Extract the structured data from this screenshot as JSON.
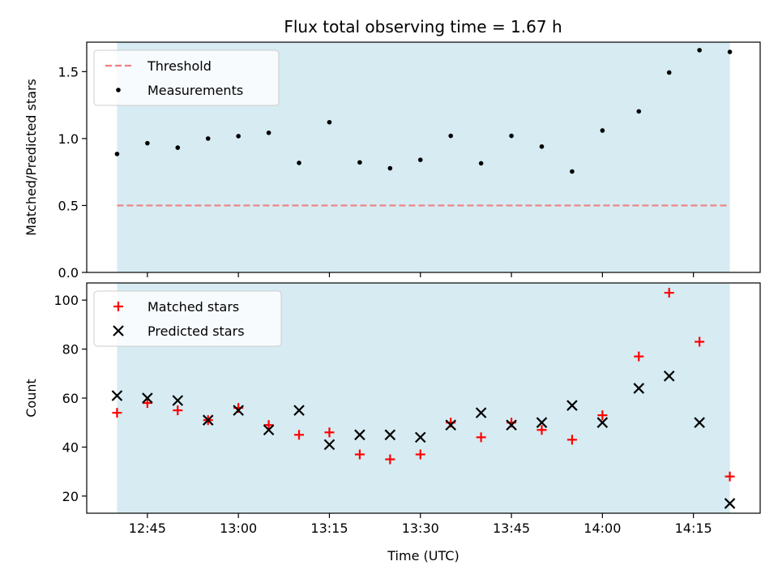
{
  "title": "Flux total observing time = 1.67 h",
  "colors": {
    "span": "#add8e6",
    "threshold": "#f08080",
    "measurements": "#000000",
    "matched": "#ff0000",
    "predicted": "#000000"
  },
  "chart_data": [
    {
      "type": "scatter",
      "ylabel": "Matched/Predicted stars",
      "xlim": [
        "12:35",
        "14:26"
      ],
      "ylim": [
        0,
        1.72
      ],
      "yticks": [
        0.0,
        0.5,
        1.0,
        1.5
      ],
      "ytick_labels": [
        "0.0",
        "0.5",
        "1.0",
        "1.5"
      ],
      "shaded_span": [
        "12:40",
        "14:21"
      ],
      "legend": {
        "placement": "upper left",
        "entries": [
          "Threshold",
          "Measurements"
        ]
      },
      "threshold": {
        "name": "Threshold",
        "value": 0.5
      },
      "series": [
        {
          "name": "Measurements",
          "marker": "dot",
          "x": [
            "12:40",
            "12:45",
            "12:50",
            "12:55",
            "13:00",
            "13:05",
            "13:10",
            "13:15",
            "13:20",
            "13:25",
            "13:30",
            "13:35",
            "13:40",
            "13:45",
            "13:50",
            "13:55",
            "14:00",
            "14:06",
            "14:11",
            "14:16",
            "14:21"
          ],
          "y": [
            0.885,
            0.965,
            0.932,
            1.0,
            1.018,
            1.043,
            0.818,
            1.122,
            0.822,
            0.778,
            0.841,
            1.02,
            0.815,
            1.02,
            0.94,
            0.754,
            1.06,
            1.203,
            1.493,
            1.66,
            1.647
          ]
        }
      ]
    },
    {
      "type": "scatter",
      "ylabel": "Count",
      "xlabel": "Time (UTC)",
      "xlim": [
        "12:35",
        "14:26"
      ],
      "ylim": [
        13,
        107
      ],
      "yticks": [
        20,
        40,
        60,
        80,
        100
      ],
      "ytick_labels": [
        "20",
        "40",
        "60",
        "80",
        "100"
      ],
      "xticks": [
        "12:45",
        "13:00",
        "13:15",
        "13:30",
        "13:45",
        "14:00",
        "14:15"
      ],
      "shaded_span": [
        "12:40",
        "14:21"
      ],
      "legend": {
        "placement": "upper left",
        "entries": [
          "Matched stars",
          "Predicted stars"
        ]
      },
      "series": [
        {
          "name": "Matched stars",
          "marker": "plus",
          "x": [
            "12:40",
            "12:45",
            "12:50",
            "12:55",
            "13:00",
            "13:05",
            "13:10",
            "13:15",
            "13:20",
            "13:25",
            "13:30",
            "13:35",
            "13:40",
            "13:45",
            "13:50",
            "13:55",
            "14:00",
            "14:06",
            "14:11",
            "14:16",
            "14:21"
          ],
          "y": [
            54,
            58,
            55,
            51,
            56,
            49,
            45,
            46,
            37,
            35,
            37,
            50,
            44,
            50,
            47,
            43,
            53,
            77,
            103,
            83,
            28
          ]
        },
        {
          "name": "Predicted stars",
          "marker": "x",
          "x": [
            "12:40",
            "12:45",
            "12:50",
            "12:55",
            "13:00",
            "13:05",
            "13:10",
            "13:15",
            "13:20",
            "13:25",
            "13:30",
            "13:35",
            "13:40",
            "13:45",
            "13:50",
            "13:55",
            "14:00",
            "14:06",
            "14:11",
            "14:16",
            "14:21"
          ],
          "y": [
            61,
            60,
            59,
            51,
            55,
            47,
            55,
            41,
            45,
            45,
            44,
            49,
            54,
            49,
            50,
            57,
            50,
            64,
            69,
            50,
            17
          ]
        }
      ]
    }
  ]
}
